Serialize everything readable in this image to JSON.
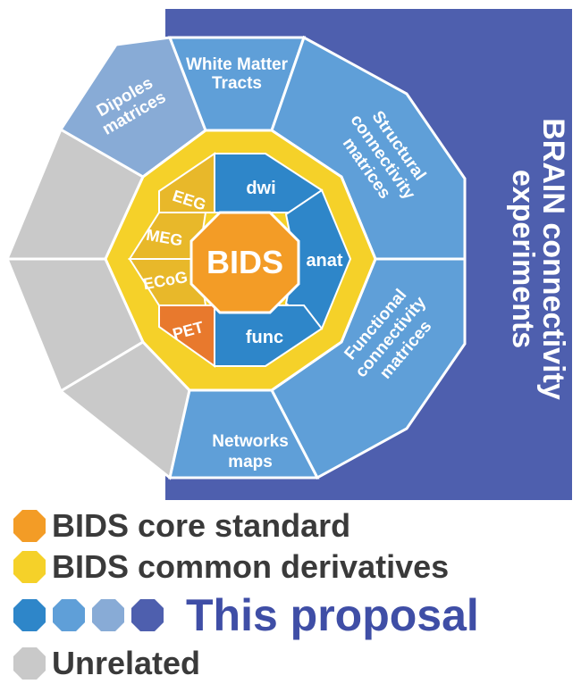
{
  "colors": {
    "core": "#f39c26",
    "derivative": "#f5d129",
    "derivative_dark": "#e8b82a",
    "pet": "#e8792d",
    "proposal_1": "#2e86c9",
    "proposal_2": "#5f9fd8",
    "proposal_3": "#88abd6",
    "proposal_4": "#4e5fae",
    "unrelated": "#c9c9c9",
    "legend_text": "#3a3a3a",
    "proposal_text": "#3f4ea6"
  },
  "diagram": {
    "center_label": "BIDS",
    "modalities": {
      "dwi": "dwi",
      "anat": "anat",
      "func": "func"
    },
    "derivatives": {
      "eeg": "EEG",
      "meg": "MEG",
      "ecog": "ECoG",
      "pet": "PET"
    },
    "outer": {
      "white_matter": [
        "White Matter",
        "Tracts"
      ],
      "dipoles": [
        "Dipoles",
        "matrices"
      ],
      "structural": [
        "Structural",
        "connectivity",
        "matrices"
      ],
      "functional": [
        "Functional",
        "connectivity",
        "matrices"
      ],
      "networks": [
        "Networks",
        "maps"
      ]
    },
    "banner": [
      "BRAIN connectivity",
      "experiments"
    ]
  },
  "legend": {
    "core": "BIDS core standard",
    "common": "BIDS common derivatives",
    "proposal": "This proposal",
    "unrelated": "Unrelated"
  }
}
